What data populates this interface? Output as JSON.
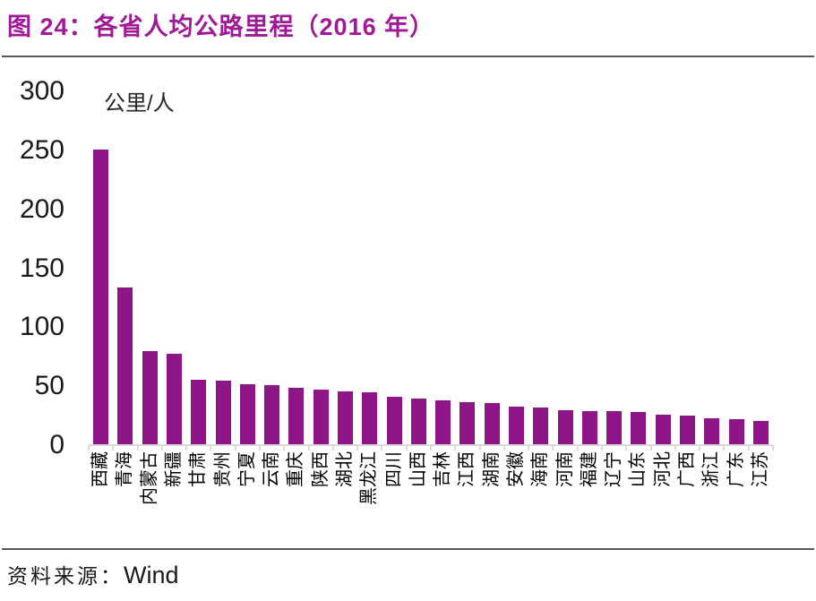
{
  "title": "图 24：各省人均公路里程（2016 年）",
  "unit_label": "公里/人",
  "source": {
    "label": "资料来源：",
    "value": "Wind"
  },
  "colors": {
    "bar": "#8E1588",
    "title": "#9E1A96",
    "divider": "#595959",
    "axis_line": "#D9D9D9",
    "tick_text": "#1a1a1a"
  },
  "chart_data": {
    "type": "bar",
    "title": "图 24：各省人均公路里程（2016 年）",
    "ylabel": "公里/人",
    "ylim": [
      0,
      300
    ],
    "yticks": [
      0,
      50,
      100,
      150,
      200,
      250,
      300
    ],
    "grid": false,
    "legend_position": "none",
    "categories": [
      "西藏",
      "青海",
      "内蒙古",
      "新疆",
      "甘肃",
      "贵州",
      "宁夏",
      "云南",
      "重庆",
      "陕西",
      "湖北",
      "黑龙江",
      "四川",
      "山西",
      "吉林",
      "江西",
      "湖南",
      "安徽",
      "海南",
      "河南",
      "福建",
      "辽宁",
      "山东",
      "河北",
      "广西",
      "浙江",
      "广东",
      "江苏"
    ],
    "values": [
      250,
      133,
      79,
      77,
      55,
      54,
      51,
      50,
      48,
      46,
      45,
      44,
      40,
      39,
      37,
      36,
      35,
      32,
      31,
      29,
      28,
      28,
      27,
      25,
      24,
      22,
      21,
      20
    ]
  }
}
